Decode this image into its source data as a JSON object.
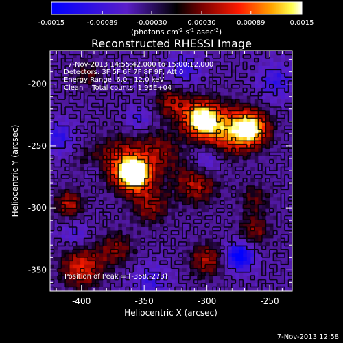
{
  "colorbar": {
    "ticks": [
      {
        "value": -0.0015,
        "label": "-0.0015"
      },
      {
        "value": -0.00089,
        "label": "-0.00089"
      },
      {
        "value": -0.0003,
        "label": "-0.00030"
      },
      {
        "value": 0.0003,
        "label": "0.00030"
      },
      {
        "value": 0.00089,
        "label": "0.00089"
      },
      {
        "value": 0.0015,
        "label": "0.0015"
      }
    ],
    "range": [
      -0.0015,
      0.0015
    ],
    "unit_parts": {
      "base": "(photons cm",
      "exp1": "-2",
      "mid": " s",
      "exp2": "-1",
      "tail": " asec",
      "exp3": "-2",
      "close": ")"
    }
  },
  "chart_data": {
    "type": "heatmap",
    "title": "Reconstructed RHESSI Image",
    "xlabel": "Heliocentric X (arcsec)",
    "ylabel": "Heliocentric Y (arcsec)",
    "xlim": [
      -425,
      -232
    ],
    "ylim": [
      -367,
      -173
    ],
    "xticks": [
      {
        "value": -400,
        "label": "-400"
      },
      {
        "value": -350,
        "label": "-350"
      },
      {
        "value": -300,
        "label": "-300"
      },
      {
        "value": -250,
        "label": "-250"
      }
    ],
    "yticks": [
      {
        "value": -200,
        "label": "-200"
      },
      {
        "value": -250,
        "label": "-250"
      },
      {
        "value": -300,
        "label": "-300"
      },
      {
        "value": -350,
        "label": "-350"
      }
    ],
    "info_lines": [
      "7-Nov-2013 14:55:42.000 to 15:00:12.000",
      "Detectors: 3F 5F 6F 7F 8F 9F, Att 0",
      "Energy Range: 6.0 - 12.0 keV",
      "Clean    Total counts: 1.95E+04"
    ],
    "peak_text": "Position of Peak = [-358,-273]",
    "peak": {
      "x": -358,
      "y": -273,
      "value": 0.0015
    },
    "sources": [
      {
        "x": -358,
        "y": -273,
        "amp": 1.55,
        "sigma": 9
      },
      {
        "x": -370,
        "y": -262,
        "amp": 0.6,
        "sigma": 14
      },
      {
        "x": -305,
        "y": -228,
        "amp": 1.3,
        "sigma": 10
      },
      {
        "x": -265,
        "y": -236,
        "amp": 1.2,
        "sigma": 10
      },
      {
        "x": -285,
        "y": -238,
        "amp": 0.8,
        "sigma": 14
      },
      {
        "x": -328,
        "y": -215,
        "amp": 0.55,
        "sigma": 9
      },
      {
        "x": -338,
        "y": -255,
        "amp": 0.45,
        "sigma": 13
      },
      {
        "x": -308,
        "y": -280,
        "amp": 0.6,
        "sigma": 12
      },
      {
        "x": -345,
        "y": -298,
        "amp": 0.5,
        "sigma": 11
      },
      {
        "x": -410,
        "y": -297,
        "amp": 0.6,
        "sigma": 8
      },
      {
        "x": -395,
        "y": -265,
        "amp": 0.45,
        "sigma": 8
      },
      {
        "x": -400,
        "y": -348,
        "amp": 0.7,
        "sigma": 12
      },
      {
        "x": -372,
        "y": -333,
        "amp": 0.45,
        "sigma": 10
      },
      {
        "x": -300,
        "y": -342,
        "amp": 0.55,
        "sigma": 10
      },
      {
        "x": -262,
        "y": -318,
        "amp": 0.45,
        "sigma": 9
      },
      {
        "x": -395,
        "y": -192,
        "amp": 0.35,
        "sigma": 8
      },
      {
        "x": -262,
        "y": -292,
        "amp": 0.35,
        "sigma": 9
      },
      {
        "x": -274,
        "y": -339,
        "amp": -0.85,
        "sigma": 8
      },
      {
        "x": -392,
        "y": -268,
        "amp": -0.55,
        "sigma": 7
      },
      {
        "x": -418,
        "y": -243,
        "amp": -0.45,
        "sigma": 9
      },
      {
        "x": -300,
        "y": -262,
        "amp": -0.45,
        "sigma": 9
      },
      {
        "x": -318,
        "y": -188,
        "amp": -0.4,
        "sigma": 9
      },
      {
        "x": -355,
        "y": -228,
        "amp": -0.35,
        "sigma": 7
      },
      {
        "x": -245,
        "y": -198,
        "amp": -0.4,
        "sigma": 10
      },
      {
        "x": -345,
        "y": -360,
        "amp": -0.35,
        "sigma": 10
      },
      {
        "x": -405,
        "y": -322,
        "amp": -0.3,
        "sigma": 8
      }
    ],
    "background": -0.25,
    "grid": false
  },
  "footer": {
    "timestamp": "7-Nov-2013 12:58"
  }
}
